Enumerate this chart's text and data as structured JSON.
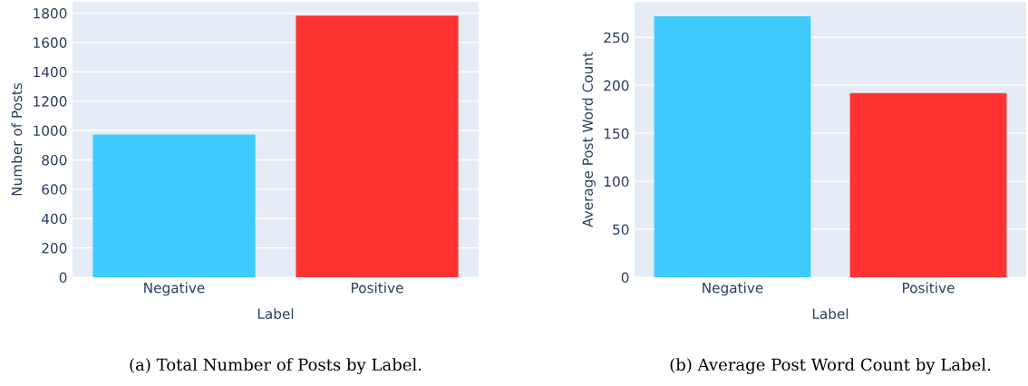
{
  "chart_data": [
    {
      "type": "bar",
      "title": "(a) Total Number of Posts by Label.",
      "xlabel": "Label",
      "ylabel": "Number of Posts",
      "categories": [
        "Negative",
        "Positive"
      ],
      "values": [
        972,
        1783
      ],
      "colors": [
        "#40cbff",
        "#ff3232"
      ],
      "ylim": [
        0,
        1877
      ],
      "yticks": [
        0,
        200,
        400,
        600,
        800,
        1000,
        1200,
        1400,
        1600,
        1800
      ],
      "grid": "y"
    },
    {
      "type": "bar",
      "title": "(b) Average Post Word Count by Label.",
      "xlabel": "Label",
      "ylabel": "Average Post Word Count",
      "categories": [
        "Negative",
        "Positive"
      ],
      "values": [
        272,
        192
      ],
      "colors": [
        "#40cbff",
        "#ff3232"
      ],
      "ylim": [
        0,
        287
      ],
      "yticks": [
        0,
        50,
        100,
        150,
        200,
        250
      ],
      "grid": "y"
    }
  ]
}
